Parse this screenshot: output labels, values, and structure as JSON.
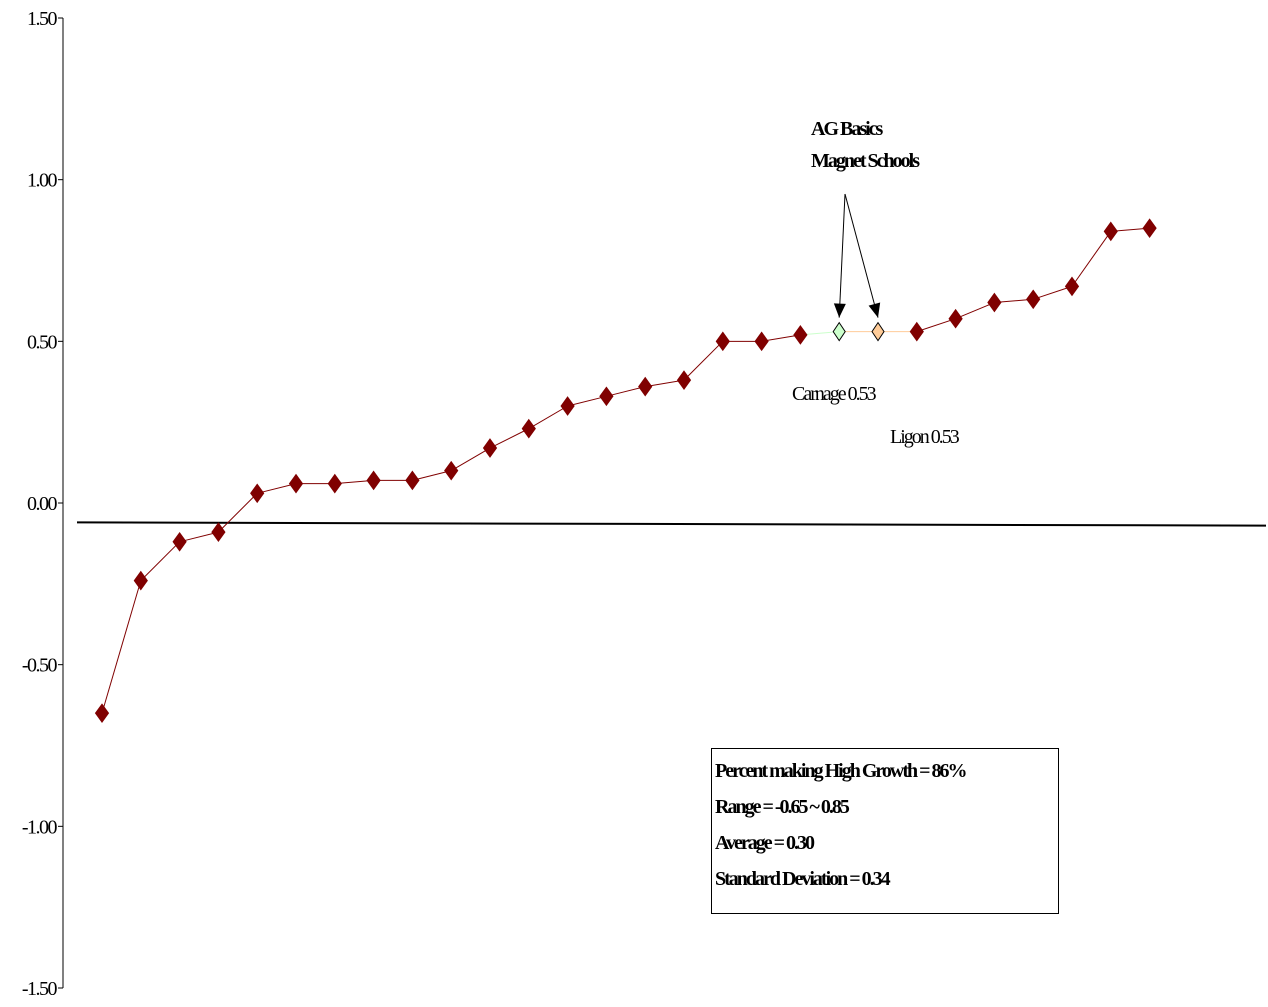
{
  "chart_data": {
    "type": "line",
    "title": "",
    "xlabel": "",
    "ylabel": "",
    "ylim": [
      -1.5,
      1.5
    ],
    "yticks": [
      "1.50",
      "1.00",
      "0.50",
      "0.00",
      "-0.50",
      "-1.00",
      "-1.50"
    ],
    "grid": false,
    "series_color": "#800000",
    "values": [
      -0.65,
      -0.24,
      -0.12,
      -0.09,
      0.03,
      0.06,
      0.06,
      0.07,
      0.07,
      0.1,
      0.17,
      0.23,
      0.3,
      0.33,
      0.36,
      0.38,
      0.5,
      0.5,
      0.52,
      0.53,
      0.53,
      0.53,
      0.57,
      0.62,
      0.63,
      0.67,
      0.84,
      0.85
    ],
    "highlights": [
      {
        "index": 19,
        "label": "Carnage 0.53",
        "color": "#ccffcc"
      },
      {
        "index": 20,
        "label": "Ligon 0.53",
        "color": "#ffcc99"
      }
    ],
    "reference_line": {
      "y_start": -0.06,
      "y_end": -0.07
    },
    "annotation": {
      "line1": "AG Basics",
      "line2": "Magnet Schools"
    },
    "stats": [
      "Percent making High Growth = 86%",
      "Range = -0.65 ~ 0.85",
      "Average = 0.30",
      "Standard Deviation = 0.34"
    ]
  }
}
